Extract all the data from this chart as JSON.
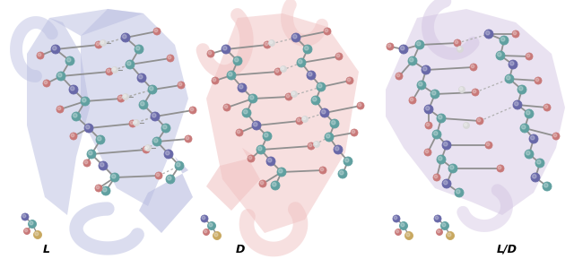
{
  "figure_width": 6.4,
  "figure_height": 2.89,
  "dpi": 100,
  "background_color": "#ffffff",
  "panels": [
    {
      "label": "L",
      "ribbon_color": "#b8bce0",
      "ribbon_alpha": 0.5
    },
    {
      "label": "D",
      "ribbon_color": "#f0c0c0",
      "ribbon_alpha": 0.5
    },
    {
      "label": "L/D",
      "ribbon_color": "#d0c0e0",
      "ribbon_alpha": 0.45
    }
  ],
  "atom_colors": {
    "N": "#6868a8",
    "C": "#60a0a0",
    "O": "#c87878",
    "H": "#d8d8d8",
    "S": "#c8a860"
  },
  "bond_color": "#909090",
  "hbond_color": "#b0b0b0"
}
